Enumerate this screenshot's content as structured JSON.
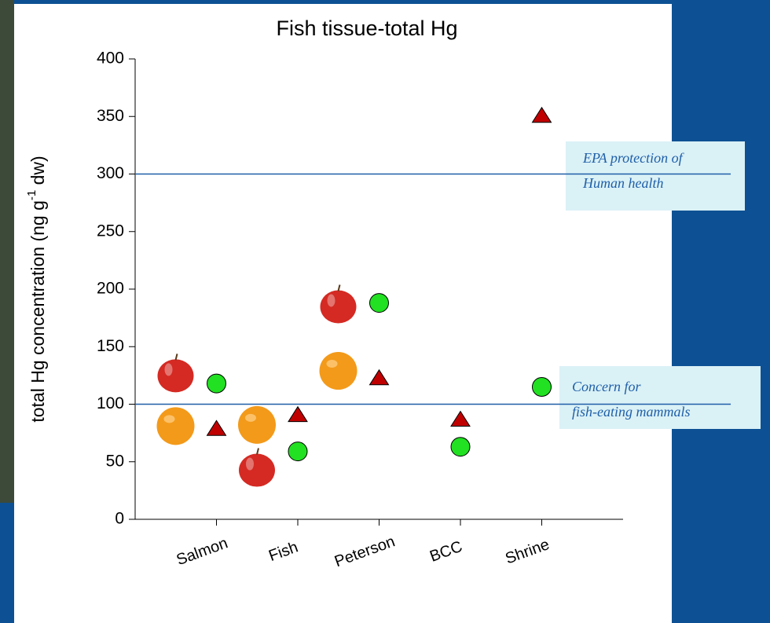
{
  "chart_data": {
    "type": "scatter",
    "title": "Fish tissue-total Hg",
    "ylabel_parts": [
      "total Hg concentration (ng g",
      "-1",
      " dw)"
    ],
    "categories": [
      "Salmon",
      "Fish",
      "Peterson",
      "BCC",
      "Shrine"
    ],
    "series": [
      {
        "marker": "apple",
        "color": "#d42a23",
        "values": [
          126,
          44,
          186,
          null,
          null
        ]
      },
      {
        "marker": "orange",
        "color": "#f39a1a",
        "values": [
          81,
          82,
          129,
          null,
          null
        ]
      },
      {
        "marker": "triangle",
        "color": "#c00000",
        "values": [
          79,
          91,
          123,
          87,
          351
        ]
      },
      {
        "marker": "circle",
        "color": "#22e022",
        "values": [
          118,
          59,
          188,
          63,
          115
        ]
      }
    ],
    "reference_lines": [
      {
        "value": 300,
        "label": [
          "EPA protection of",
          "Human health"
        ]
      },
      {
        "value": 100,
        "label": [
          "Concern for",
          "fish-eating mammals"
        ]
      }
    ],
    "ylim": [
      0,
      400
    ],
    "yticks": [
      0,
      50,
      100,
      150,
      200,
      250,
      300,
      350,
      400
    ]
  }
}
